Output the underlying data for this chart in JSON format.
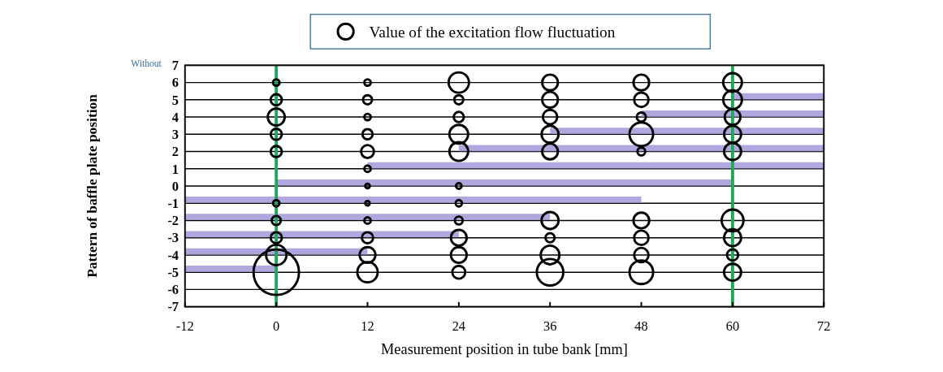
{
  "chart_data": {
    "type": "bubble",
    "xlabel": "Measurement position in tube bank [mm]",
    "ylabel": "Pattern of baffle plate position",
    "annotations": [
      "Without"
    ],
    "xlim": [
      -12,
      72
    ],
    "xticks": [
      -12,
      0,
      12,
      24,
      36,
      48,
      60,
      72
    ],
    "ylim": [
      -7,
      7
    ],
    "yticks": [
      -7,
      -6,
      -5,
      -4,
      -3,
      -2,
      -1,
      0,
      1,
      2,
      3,
      4,
      5,
      6,
      7
    ],
    "grid": "y",
    "legend": "top",
    "ref_lines": [
      {
        "axis": "x",
        "value": 0,
        "color": "#1fa85a"
      },
      {
        "axis": "x",
        "value": 60,
        "color": "#1fa85a"
      }
    ],
    "series": [
      {
        "type": "line",
        "color": "#a597d8",
        "x": [
          60,
          72
        ],
        "values": [
          5.2,
          5.2
        ]
      },
      {
        "type": "line",
        "color": "#a597d8",
        "x": [
          48,
          72
        ],
        "values": [
          4.2,
          4.2
        ]
      },
      {
        "type": "line",
        "color": "#a597d8",
        "x": [
          36,
          72
        ],
        "values": [
          3.2,
          3.2
        ]
      },
      {
        "type": "line",
        "color": "#a597d8",
        "x": [
          24,
          72
        ],
        "values": [
          2.2,
          2.2
        ]
      },
      {
        "type": "line",
        "color": "#a597d8",
        "x": [
          12,
          72
        ],
        "values": [
          1.2,
          1.2
        ]
      },
      {
        "type": "line",
        "color": "#a597d8",
        "x": [
          0,
          60
        ],
        "values": [
          0.2,
          0.2
        ]
      },
      {
        "type": "line",
        "color": "#a597d8",
        "x": [
          -12,
          48
        ],
        "values": [
          -0.8,
          -0.8
        ]
      },
      {
        "type": "line",
        "color": "#a597d8",
        "x": [
          -12,
          36
        ],
        "values": [
          -1.8,
          -1.8
        ]
      },
      {
        "type": "line",
        "color": "#a597d8",
        "x": [
          -12,
          24
        ],
        "values": [
          -2.8,
          -2.8
        ]
      },
      {
        "type": "line",
        "color": "#a597d8",
        "x": [
          -12,
          12
        ],
        "values": [
          -3.8,
          -3.8
        ]
      },
      {
        "type": "line",
        "color": "#a597d8",
        "x": [
          -12,
          0
        ],
        "values": [
          -4.8,
          -4.8
        ]
      },
      {
        "name": "Value of the excitation flow fluctuation",
        "color": "#000000",
        "x": [
          0,
          0,
          0,
          0,
          0,
          0,
          0,
          0,
          0,
          0,
          12,
          12,
          12,
          12,
          12,
          12,
          12,
          12,
          12,
          12,
          12,
          12,
          24,
          24,
          24,
          24,
          24,
          24,
          24,
          24,
          24,
          24,
          24,
          36,
          36,
          36,
          36,
          36,
          36,
          36,
          36,
          36,
          48,
          48,
          48,
          48,
          48,
          48,
          48,
          48,
          48,
          60,
          60,
          60,
          60,
          60,
          60,
          60,
          60,
          60
        ],
        "values": [
          6,
          5,
          4,
          3,
          2,
          -1,
          -2,
          -3,
          -4,
          -5,
          6,
          5,
          4,
          3,
          2,
          1,
          0,
          -1,
          -2,
          -3,
          -4,
          -5,
          6,
          5,
          4,
          3,
          2,
          0,
          -1,
          -2,
          -3,
          -4,
          -5,
          6,
          5,
          4,
          3,
          2,
          -2,
          -3,
          -4,
          -5,
          6,
          5,
          4,
          3,
          2,
          -2,
          -3,
          -4,
          -5,
          6,
          5,
          4,
          3,
          2,
          -2,
          -3,
          -4,
          -5
        ],
        "sizes": [
          0.02,
          0.06,
          0.14,
          0.06,
          0.06,
          0.02,
          0.04,
          0.06,
          0.2,
          1,
          0.02,
          0.04,
          0.02,
          0.05,
          0.08,
          0.02,
          0.01,
          0.01,
          0.02,
          0.06,
          0.12,
          0.2,
          0.2,
          0.04,
          0.05,
          0.17,
          0.17,
          0.015,
          0.02,
          0.03,
          0.12,
          0.12,
          0.08,
          0.12,
          0.12,
          0.1,
          0.14,
          0.12,
          0.14,
          0.04,
          0.17,
          0.34,
          0.12,
          0.1,
          0.04,
          0.27,
          0.03,
          0.12,
          0.1,
          0.1,
          0.27,
          0.17,
          0.17,
          0.12,
          0.14,
          0.14,
          0.23,
          0.14,
          0.06,
          0.14
        ]
      }
    ]
  }
}
